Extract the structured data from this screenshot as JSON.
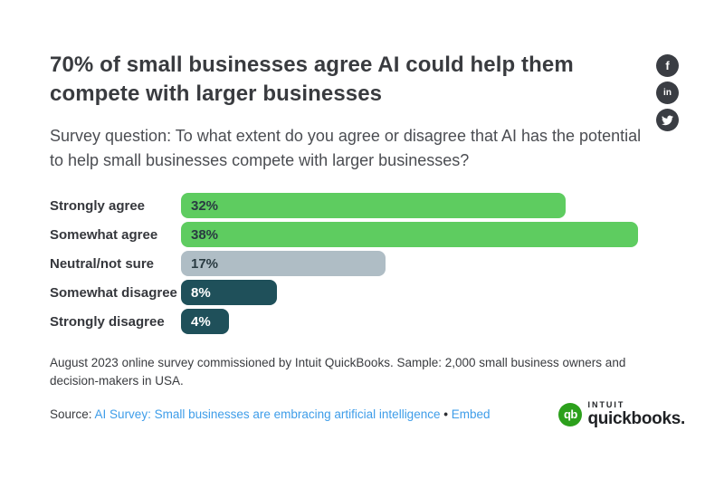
{
  "header": {
    "title": "70% of small businesses agree AI could help them compete with larger businesses",
    "subtitle": "Survey question: To what extent do you agree or disagree that AI has the potential to help small businesses compete with larger businesses?"
  },
  "social": {
    "buttons": [
      "facebook",
      "linkedin",
      "twitter"
    ],
    "facebook_glyph": "f",
    "linkedin_glyph": "in",
    "circle_color": "#3a3d43"
  },
  "chart_data": {
    "type": "bar",
    "orientation": "horizontal",
    "categories": [
      "Strongly agree",
      "Somewhat agree",
      "Neutral/not sure",
      "Somewhat disagree",
      "Strongly disagree"
    ],
    "values": [
      32,
      38,
      17,
      8,
      4
    ],
    "value_labels": [
      "32%",
      "38%",
      "17%",
      "8%",
      "4%"
    ],
    "unit": "%",
    "scale_max": 38,
    "bar_colors": [
      "#5ecc60",
      "#5ecc60",
      "#afbdc5",
      "#1f505a",
      "#1f505a"
    ],
    "value_label_colors": [
      "#2a3b42",
      "#2a3b42",
      "#2a3b42",
      "#ffffff",
      "#ffffff"
    ],
    "grid": false,
    "legend": false
  },
  "footer": {
    "note": "August 2023 online survey commissioned by Intuit QuickBooks. Sample: 2,000 small business owners and decision-makers in USA.",
    "source_label": "Source:",
    "source_link": "AI Survey: Small businesses are embracing artificial intelligence",
    "separator": "•",
    "embed_label": "Embed",
    "link_color": "#3e9de9"
  },
  "logo": {
    "monogram": "qb",
    "brand_top": "INTUIT",
    "brand_bottom": "quickbooks.",
    "green": "#2ca01c"
  }
}
